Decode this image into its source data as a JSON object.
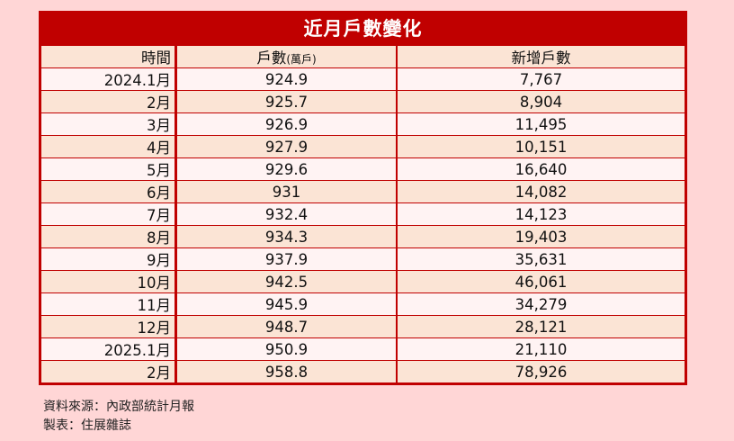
{
  "title": "近月戶數變化",
  "headers": {
    "time": "時間",
    "households": "戶數",
    "households_unit": "(萬戶)",
    "new": "新增戶數"
  },
  "rows": [
    {
      "time": "2024.1月",
      "households": "924.9",
      "new": "7,767"
    },
    {
      "time": "2月",
      "households": "925.7",
      "new": "8,904"
    },
    {
      "time": "3月",
      "households": "926.9",
      "new": "11,495"
    },
    {
      "time": "4月",
      "households": "927.9",
      "new": "10,151"
    },
    {
      "time": "5月",
      "households": "929.6",
      "new": "16,640"
    },
    {
      "time": "6月",
      "households": "931",
      "new": "14,082"
    },
    {
      "time": "7月",
      "households": "932.4",
      "new": "14,123"
    },
    {
      "time": "8月",
      "households": "934.3",
      "new": "19,403"
    },
    {
      "time": "9月",
      "households": "937.9",
      "new": "35,631"
    },
    {
      "time": "10月",
      "households": "942.5",
      "new": "46,061"
    },
    {
      "time": "11月",
      "households": "945.9",
      "new": "34,279"
    },
    {
      "time": "12月",
      "households": "948.7",
      "new": "28,121"
    },
    {
      "time": "2025.1月",
      "households": "950.9",
      "new": "21,110"
    },
    {
      "time": "2月",
      "households": "958.8",
      "new": "78,926"
    }
  ],
  "notes": {
    "source": "資料來源：內政部統計月報",
    "maker": "製表：住展雜誌"
  },
  "colors": {
    "accent": "#c00000",
    "background": "#ffd6d6",
    "row_alt": "#fbe4d5",
    "row": "#fff3f3"
  },
  "chart_data": {
    "type": "table",
    "title": "近月戶數變化",
    "columns": [
      "時間",
      "戶數(萬戶)",
      "新增戶數"
    ],
    "categories": [
      "2024.1月",
      "2月",
      "3月",
      "4月",
      "5月",
      "6月",
      "7月",
      "8月",
      "9月",
      "10月",
      "11月",
      "12月",
      "2025.1月",
      "2月"
    ],
    "series": [
      {
        "name": "戶數(萬戶)",
        "values": [
          924.9,
          925.7,
          926.9,
          927.9,
          929.6,
          931,
          932.4,
          934.3,
          937.9,
          942.5,
          945.9,
          948.7,
          950.9,
          958.8
        ]
      },
      {
        "name": "新增戶數",
        "values": [
          7767,
          8904,
          11495,
          10151,
          16640,
          14082,
          14123,
          19403,
          35631,
          46061,
          34279,
          28121,
          21110,
          78926
        ]
      }
    ]
  }
}
